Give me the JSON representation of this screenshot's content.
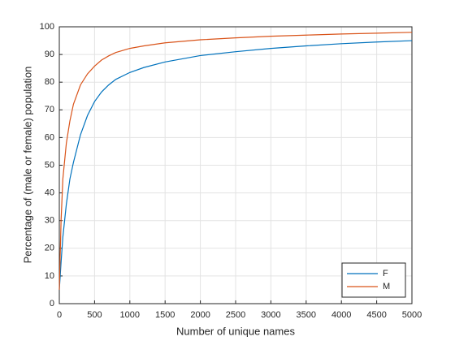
{
  "chart_data": {
    "type": "line",
    "xlabel": "Number of unique names",
    "ylabel": "Percentage of (male or female) population",
    "x": [
      0,
      25,
      50,
      100,
      150,
      200,
      300,
      400,
      500,
      600,
      700,
      800,
      1000,
      1200,
      1500,
      2000,
      2500,
      3000,
      3500,
      4000,
      4500,
      5000
    ],
    "series": [
      {
        "name": "F",
        "color": "#0072bd",
        "values": [
          5,
          15,
          24,
          36,
          45,
          51,
          61,
          68,
          73,
          76.5,
          79,
          81,
          83.5,
          85.3,
          87.3,
          89.6,
          91,
          92.2,
          93.1,
          93.9,
          94.5,
          95
        ]
      },
      {
        "name": "M",
        "color": "#d95319",
        "values": [
          5,
          30,
          45,
          58,
          66,
          72,
          79,
          83,
          85.8,
          88,
          89.5,
          90.7,
          92.2,
          93.1,
          94.2,
          95.3,
          96,
          96.6,
          97,
          97.4,
          97.7,
          98
        ]
      }
    ],
    "xlim": [
      0,
      5000
    ],
    "xticks": [
      0,
      500,
      1000,
      1500,
      2000,
      2500,
      3000,
      3500,
      4000,
      4500,
      5000
    ],
    "ylim": [
      0,
      100
    ],
    "yticks": [
      0,
      10,
      20,
      30,
      40,
      50,
      60,
      70,
      80,
      90,
      100
    ],
    "grid": true,
    "legend": "lower right"
  }
}
